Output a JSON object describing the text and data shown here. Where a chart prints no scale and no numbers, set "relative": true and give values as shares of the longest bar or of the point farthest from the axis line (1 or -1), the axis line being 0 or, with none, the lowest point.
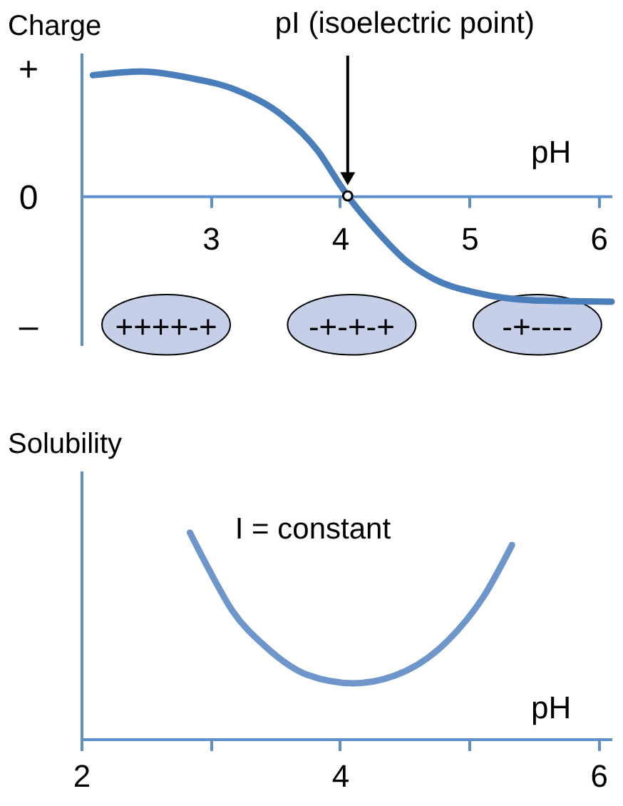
{
  "chart_data": [
    {
      "type": "line",
      "ylabel": "Charge",
      "xlabel": "pH",
      "relative": true,
      "x": [
        2.09,
        2.47,
        2.83,
        3.2,
        3.55,
        3.83,
        4.0,
        4.06,
        4.3,
        4.51,
        4.73,
        5.06,
        5.5,
        6.1
      ],
      "series": [
        {
          "color": "#4a7ebb",
          "values": [
            0.97,
            1.0,
            0.95,
            0.85,
            0.65,
            0.36,
            0.09,
            0.0,
            -0.3,
            -0.52,
            -0.67,
            -0.78,
            -0.84,
            -0.85
          ]
        }
      ],
      "xlim": [
        2,
        6.1
      ],
      "xticks": [
        3,
        4,
        5,
        6
      ],
      "grid": false,
      "annotations": [
        "pI (isoelectric point)",
        "+",
        "0",
        "–",
        "++++-+",
        "-+-+-+",
        "-+----"
      ]
    },
    {
      "type": "line",
      "ylabel": "Solubility",
      "xlabel": "pH",
      "relative": true,
      "x": [
        2.84,
        2.98,
        3.17,
        3.42,
        3.75,
        4.1,
        4.51,
        4.84,
        5.11,
        5.33
      ],
      "series": [
        {
          "color": "#6f96cb",
          "values": [
            1.0,
            0.83,
            0.62,
            0.45,
            0.31,
            0.27,
            0.33,
            0.48,
            0.69,
            0.94
          ]
        }
      ],
      "xlim": [
        2,
        6.1
      ],
      "xticks": [
        2,
        {
          "value": 3,
          "label": null
        },
        4,
        {
          "value": 5,
          "label": null
        },
        6
      ],
      "grid": false,
      "annotations": [
        "I = constant"
      ]
    }
  ]
}
